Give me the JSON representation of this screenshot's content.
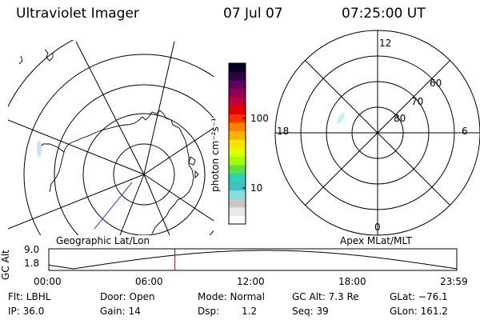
{
  "header": {
    "instrument": "Ultraviolet Imager",
    "date": "07 Jul 07",
    "time": "07:25:00 UT"
  },
  "colorbar": {
    "label": "photon cm⁻²s⁻¹",
    "ticks": [
      "100",
      "10"
    ],
    "colors": [
      "#ffffff",
      "#e8e8e8",
      "#c8c8c8",
      "#80e0e0",
      "#40c0c0",
      "#30d0b0",
      "#60e040",
      "#a0ff00",
      "#e0ff00",
      "#ffe000",
      "#ffb000",
      "#ff8000",
      "#ff3000",
      "#e00000",
      "#c00040",
      "#900050",
      "#600060",
      "#300040",
      "#000020"
    ]
  },
  "left_map": {
    "caption": "Geographic Lat/Lon"
  },
  "right_map": {
    "caption": "Apex MLat/MLT",
    "mlt_labels": {
      "top": "12",
      "left": "18",
      "right": "6",
      "bottom": "0"
    },
    "lat_labels": [
      "60",
      "70",
      "80"
    ]
  },
  "timeline": {
    "ylabel": "GC Alt",
    "yticks": [
      "9.0",
      "1.8"
    ],
    "xticks": [
      "00:00",
      "06:00",
      "12:00",
      "18:00",
      "23:59"
    ],
    "current_time_fraction": 0.309
  },
  "status": {
    "filter": "Flt: LBHL",
    "door": "Door: Open",
    "mode": "Mode: Normal",
    "gc_alt": "GC Alt: 7.3 Re",
    "glat": "GLat: −76.1",
    "ip": "IP: 36.0",
    "gain": "Gain: 14",
    "dsp_label": "Dsp:",
    "dsp_value": "1.2",
    "seq": "Seq: 39",
    "glon": "GLon: 161.2"
  }
}
